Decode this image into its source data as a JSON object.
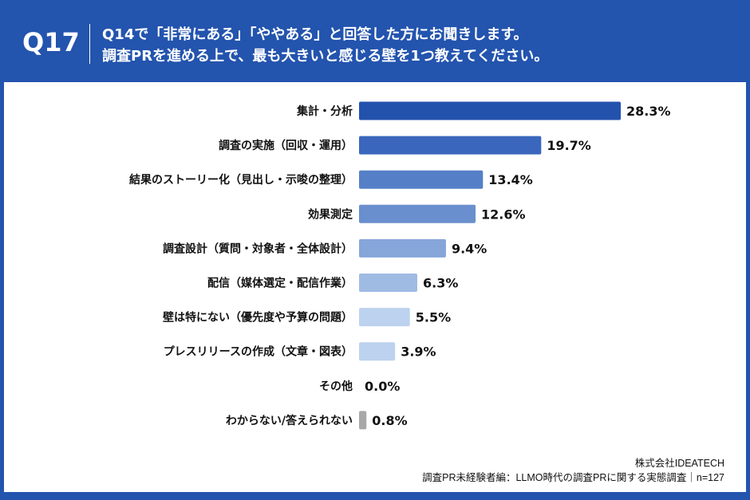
{
  "header": {
    "qnum": "Q17",
    "line1": "Q14で「非常にある」「ややある」と回答した方にお聞きします。",
    "line2": "調査PRを進める上で、最も大きいと感じる壁を1つ教えてください。"
  },
  "chart_data": {
    "type": "bar",
    "orientation": "horizontal",
    "categories": [
      "集計・分析",
      "調査の実施（回収・運用）",
      "結果のストーリー化（見出し・示唆の整理）",
      "効果測定",
      "調査設計（質問・対象者・全体設計）",
      "配信（媒体選定・配信作業）",
      "壁は特にない（優先度や予算の問題）",
      "プレスリリースの作成（文章・図表）",
      "その他",
      "わからない/答えられない"
    ],
    "values": [
      28.3,
      19.7,
      13.4,
      12.6,
      9.4,
      6.3,
      5.5,
      3.9,
      0.0,
      0.8
    ],
    "labels": [
      "28.3%",
      "19.7%",
      "13.4%",
      "12.6%",
      "9.4%",
      "6.3%",
      "5.5%",
      "3.9%",
      "0.0%",
      "0.8%"
    ],
    "colors": [
      "#2352ad",
      "#3a67bd",
      "#5580c7",
      "#6a8fce",
      "#86a6da",
      "#a0bbe3",
      "#bcd2ee",
      "#bcd2ee",
      "#bcd2ee",
      "#a8a8a8"
    ],
    "grid": false
  },
  "footer": {
    "company": "株式会社IDEATECH",
    "source": "調査PR未経験者編：LLMO時代の調査PRに関する実態調査｜n=127"
  }
}
